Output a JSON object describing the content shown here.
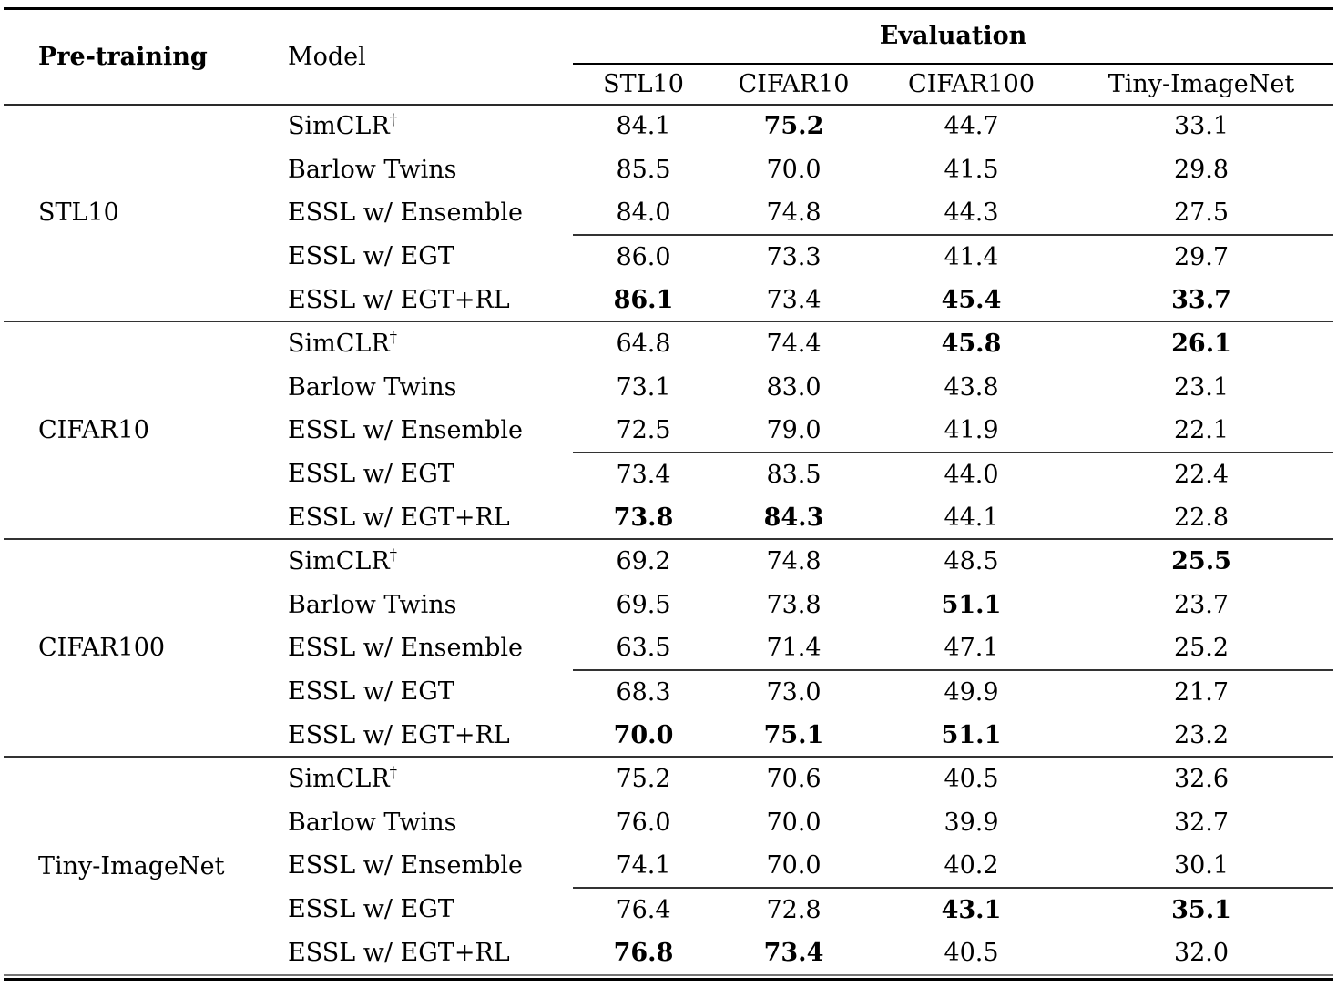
{
  "table": {
    "pretraining_header": "Pre-training",
    "model_header": "Model",
    "evaluation_header": "Evaluation",
    "eval_columns": [
      "STL10",
      "CIFAR10",
      "CIFAR100",
      "Tiny-ImageNet"
    ],
    "groups": [
      {
        "pretraining": "STL10",
        "rows": [
          {
            "model": "SimCLR",
            "model_sup": "†",
            "values": [
              "84.1",
              "75.2",
              "44.7",
              "33.1"
            ],
            "bold": [
              false,
              true,
              false,
              false
            ]
          },
          {
            "model": "Barlow Twins",
            "model_sup": "",
            "values": [
              "85.5",
              "70.0",
              "41.5",
              "29.8"
            ],
            "bold": [
              false,
              false,
              false,
              false
            ]
          },
          {
            "model": "ESSL w/ Ensemble",
            "model_sup": "",
            "values": [
              "84.0",
              "74.8",
              "44.3",
              "27.5"
            ],
            "bold": [
              false,
              false,
              false,
              false
            ]
          },
          {
            "model": "ESSL w/ EGT",
            "model_sup": "",
            "values": [
              "86.0",
              "73.3",
              "41.4",
              "29.7"
            ],
            "bold": [
              false,
              false,
              false,
              false
            ]
          },
          {
            "model": "ESSL w/ EGT+RL",
            "model_sup": "",
            "values": [
              "86.1",
              "73.4",
              "45.4",
              "33.7"
            ],
            "bold": [
              true,
              false,
              true,
              true
            ]
          }
        ]
      },
      {
        "pretraining": "CIFAR10",
        "rows": [
          {
            "model": "SimCLR",
            "model_sup": "†",
            "values": [
              "64.8",
              "74.4",
              "45.8",
              "26.1"
            ],
            "bold": [
              false,
              false,
              true,
              true
            ]
          },
          {
            "model": "Barlow Twins",
            "model_sup": "",
            "values": [
              "73.1",
              "83.0",
              "43.8",
              "23.1"
            ],
            "bold": [
              false,
              false,
              false,
              false
            ]
          },
          {
            "model": "ESSL w/ Ensemble",
            "model_sup": "",
            "values": [
              "72.5",
              "79.0",
              "41.9",
              "22.1"
            ],
            "bold": [
              false,
              false,
              false,
              false
            ]
          },
          {
            "model": "ESSL w/ EGT",
            "model_sup": "",
            "values": [
              "73.4",
              "83.5",
              "44.0",
              "22.4"
            ],
            "bold": [
              false,
              false,
              false,
              false
            ]
          },
          {
            "model": "ESSL w/ EGT+RL",
            "model_sup": "",
            "values": [
              "73.8",
              "84.3",
              "44.1",
              "22.8"
            ],
            "bold": [
              true,
              true,
              false,
              false
            ]
          }
        ]
      },
      {
        "pretraining": "CIFAR100",
        "rows": [
          {
            "model": "SimCLR",
            "model_sup": "†",
            "values": [
              "69.2",
              "74.8",
              "48.5",
              "25.5"
            ],
            "bold": [
              false,
              false,
              false,
              true
            ]
          },
          {
            "model": "Barlow Twins",
            "model_sup": "",
            "values": [
              "69.5",
              "73.8",
              "51.1",
              "23.7"
            ],
            "bold": [
              false,
              false,
              true,
              false
            ]
          },
          {
            "model": "ESSL w/ Ensemble",
            "model_sup": "",
            "values": [
              "63.5",
              "71.4",
              "47.1",
              "25.2"
            ],
            "bold": [
              false,
              false,
              false,
              false
            ]
          },
          {
            "model": "ESSL w/ EGT",
            "model_sup": "",
            "values": [
              "68.3",
              "73.0",
              "49.9",
              "21.7"
            ],
            "bold": [
              false,
              false,
              false,
              false
            ]
          },
          {
            "model": "ESSL w/ EGT+RL",
            "model_sup": "",
            "values": [
              "70.0",
              "75.1",
              "51.1",
              "23.2"
            ],
            "bold": [
              true,
              true,
              true,
              false
            ]
          }
        ]
      },
      {
        "pretraining": "Tiny-ImageNet",
        "rows": [
          {
            "model": "SimCLR",
            "model_sup": "†",
            "values": [
              "75.2",
              "70.6",
              "40.5",
              "32.6"
            ],
            "bold": [
              false,
              false,
              false,
              false
            ]
          },
          {
            "model": "Barlow Twins",
            "model_sup": "",
            "values": [
              "76.0",
              "70.0",
              "39.9",
              "32.7"
            ],
            "bold": [
              false,
              false,
              false,
              false
            ]
          },
          {
            "model": "ESSL w/ Ensemble",
            "model_sup": "",
            "values": [
              "74.1",
              "70.0",
              "40.2",
              "30.1"
            ],
            "bold": [
              false,
              false,
              false,
              false
            ]
          },
          {
            "model": "ESSL w/ EGT",
            "model_sup": "",
            "values": [
              "76.4",
              "72.8",
              "43.1",
              "35.1"
            ],
            "bold": [
              false,
              false,
              true,
              true
            ]
          },
          {
            "model": "ESSL w/ EGT+RL",
            "model_sup": "",
            "values": [
              "76.8",
              "73.4",
              "40.5",
              "32.0"
            ],
            "bold": [
              true,
              true,
              false,
              false
            ]
          }
        ]
      }
    ]
  }
}
